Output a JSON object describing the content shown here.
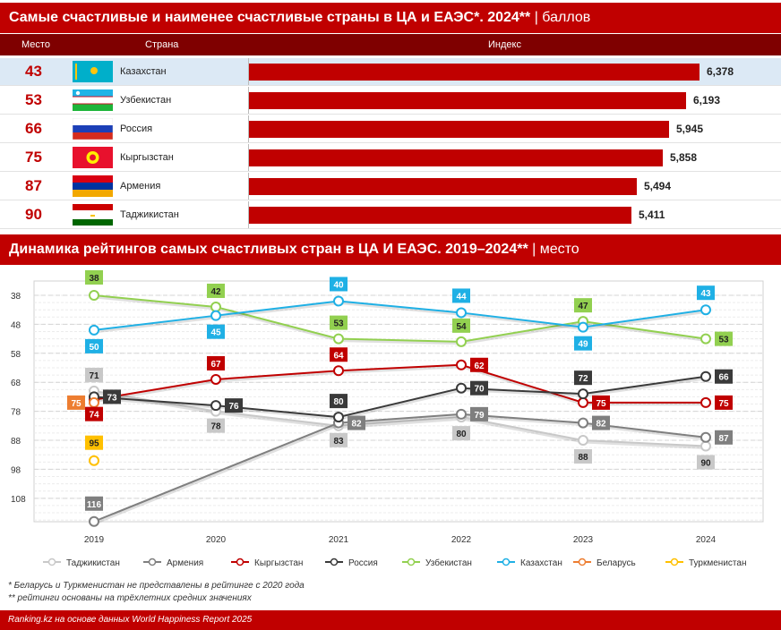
{
  "header1": {
    "title_bold": "Самые счастливые и наименее счастливые страны в ЦА и ЕАЭС*. 2024**",
    "title_unit": "| баллов"
  },
  "table": {
    "columns": {
      "rank": "Место",
      "country": "Страна",
      "index": "Индекс"
    },
    "rows": [
      {
        "rank": "43",
        "country": "Казахстан",
        "value": 6.378,
        "label": "6,378",
        "flag": "kazakhstan-flag"
      },
      {
        "rank": "53",
        "country": "Узбекистан",
        "value": 6.193,
        "label": "6,193",
        "flag": "uzbekistan-flag"
      },
      {
        "rank": "66",
        "country": "Россия",
        "value": 5.945,
        "label": "5,945",
        "flag": "russia-flag"
      },
      {
        "rank": "75",
        "country": "Кыргызстан",
        "value": 5.858,
        "label": "5,858",
        "flag": "kyrgyzstan-flag"
      },
      {
        "rank": "87",
        "country": "Армения",
        "value": 5.494,
        "label": "5,494",
        "flag": "armenia-flag"
      },
      {
        "rank": "90",
        "country": "Таджикистан",
        "value": 5.411,
        "label": "5,411",
        "flag": "tajikistan-flag"
      }
    ]
  },
  "header2": {
    "title_bold": "Динамика рейтингов самых счастливых стран в ЦА И ЕАЭС. 2019–2024**",
    "title_unit": "| место"
  },
  "chart_data": {
    "type": "line",
    "x": [
      "2019",
      "2020",
      "2021",
      "2022",
      "2023",
      "2024"
    ],
    "y_ticks": [
      38,
      48,
      58,
      68,
      78,
      88,
      98,
      108
    ],
    "ylim": [
      38,
      117
    ],
    "y_inverted": true,
    "legend_position": "bottom",
    "series": [
      {
        "name": "Таджикистан",
        "color": "#c8c8c8",
        "values": [
          71,
          78,
          83,
          80,
          88,
          90
        ]
      },
      {
        "name": "Армения",
        "color": "#7f7f7f",
        "values": [
          116,
          null,
          82,
          79,
          82,
          87
        ]
      },
      {
        "name": "Кыргызстан",
        "color": "#c00000",
        "values": [
          74,
          67,
          64,
          62,
          75,
          75
        ]
      },
      {
        "name": "Россия",
        "color": "#3a3a3a",
        "values": [
          73,
          76,
          80,
          70,
          72,
          66
        ]
      },
      {
        "name": "Узбекистан",
        "color": "#92d050",
        "values": [
          38,
          42,
          53,
          54,
          47,
          53
        ]
      },
      {
        "name": "Казахстан",
        "color": "#1fb0e5",
        "values": [
          50,
          45,
          40,
          44,
          49,
          43
        ]
      },
      {
        "name": "Беларусь",
        "color": "#ed7d31",
        "values": [
          75,
          null,
          null,
          null,
          null,
          null
        ]
      },
      {
        "name": "Туркменистан",
        "color": "#ffc000",
        "values": [
          95,
          null,
          null,
          null,
          null,
          null
        ]
      }
    ]
  },
  "footnotes": [
    "* Беларусь и Туркменистан не представлены в рейтинге с 2020 года",
    "** рейтинги основаны на трёхлетних средних значениях"
  ],
  "footer": "Ranking.kz на основе данных World Happiness Report 2025"
}
